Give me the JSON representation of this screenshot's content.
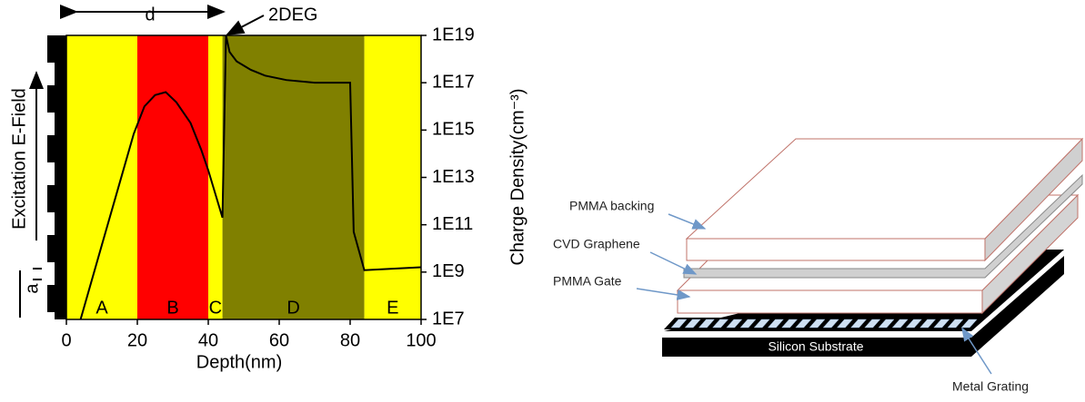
{
  "chart_data": {
    "type": "line",
    "x_label": "Depth(nm)",
    "y_label": "Charge Density(cm⁻³)",
    "side_label": "Excitation E-Field",
    "annotations": [
      "d",
      "2DEG",
      "a"
    ],
    "regions": [
      {
        "label": "A",
        "from": 0,
        "to": 20,
        "color": "#ffff00"
      },
      {
        "label": "B",
        "from": 20,
        "to": 40,
        "color": "#ff0000"
      },
      {
        "label": "C",
        "from": 40,
        "to": 44,
        "color": "#ffff00"
      },
      {
        "label": "D",
        "from": 44,
        "to": 84,
        "color": "#808000"
      },
      {
        "label": "E",
        "from": 84,
        "to": 100,
        "color": "#ffff00"
      }
    ],
    "x": [
      4,
      10,
      19,
      22,
      25,
      28,
      31,
      35,
      38,
      40,
      42,
      44,
      45,
      46,
      48,
      52,
      56,
      62,
      70,
      80,
      81,
      84,
      100
    ],
    "values": [
      10000000.0,
      14000000000.0,
      700000000000000.0,
      1e+16,
      3e+16,
      4e+16,
      1.5e+16,
      2000000000000000.0,
      150000000000000.0,
      20000000000000.0,
      2000000000000.0,
      200000000000.0,
      1e+19,
      2e+18,
      8e+17,
      3.5e+17,
      2e+17,
      1.3e+17,
      1e+17,
      1e+17,
      50000000000.0,
      1200000000.0,
      1600000000.0
    ],
    "color": "#000000",
    "xlim": [
      0,
      100
    ],
    "xticks": [
      0,
      20,
      40,
      60,
      80,
      100
    ],
    "ylim": [
      10000000.0,
      1e+19
    ],
    "log_y": true,
    "y_axis_side": "right",
    "yticks": [
      {
        "value": 10000000.0,
        "label": "1E7"
      },
      {
        "value": 1000000000.0,
        "label": "1E9"
      },
      {
        "value": 100000000000.0,
        "label": "1E11"
      },
      {
        "value": 10000000000000.0,
        "label": "1E13"
      },
      {
        "value": 1000000000000000.0,
        "label": "1E15"
      },
      {
        "value": 1e+17,
        "label": "1E17"
      },
      {
        "value": 1e+19,
        "label": "1E19"
      }
    ],
    "grid": false
  },
  "diagram": {
    "labels": {
      "backing": "PMMA backing",
      "graphene": "CVD Graphene",
      "gate": "PMMA Gate",
      "substrate": "Silicon Substrate",
      "grating": "Metal Grating"
    }
  }
}
